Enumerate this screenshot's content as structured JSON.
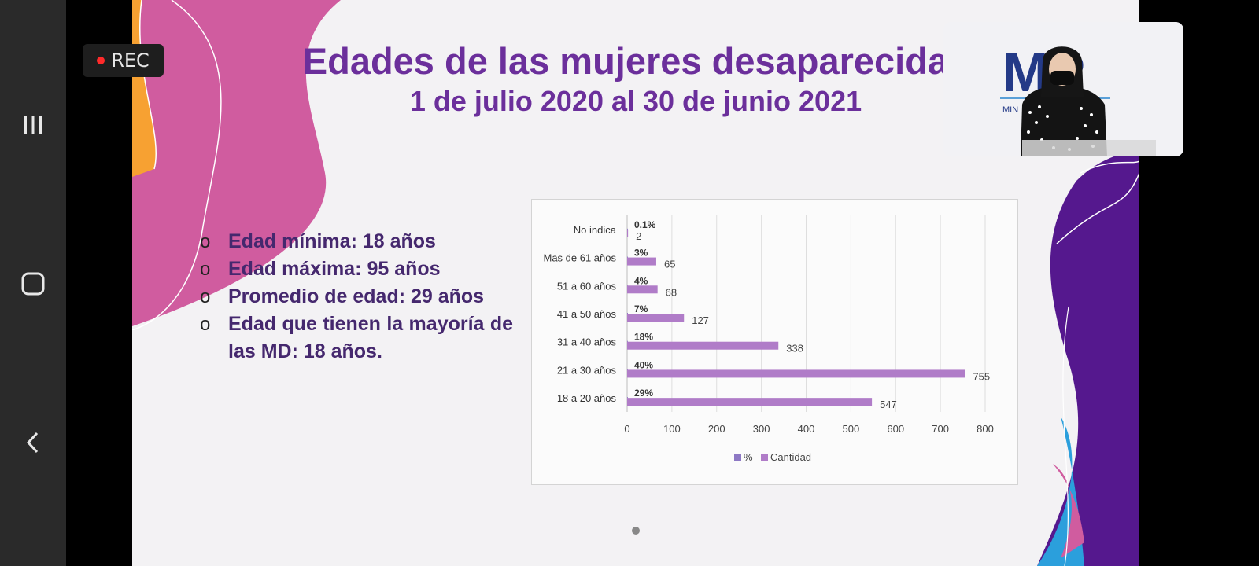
{
  "recorder": {
    "label": "REC"
  },
  "nav": {
    "recents_icon": "recents-icon",
    "home_icon": "home-icon",
    "back_icon": "back-icon"
  },
  "slide": {
    "title": "Edades de las mujeres desaparecidas",
    "subtitle": "1 de julio 2020 al 30 de junio 2021",
    "bullets": [
      "Edad mínima: 18 años",
      "Edad máxima: 95 años",
      "Promedio de edad: 29 años",
      "Edad que tienen la mayoría de las MD: 18 años."
    ],
    "bullet_marker": "o"
  },
  "camera": {
    "logo_text": "MP",
    "caption_fragment": "MIN"
  },
  "colors": {
    "purple_title": "#6b2f9b",
    "bullet_text": "#45286e",
    "bar": "#b07cc8",
    "pct_legend": "#8d78c4"
  },
  "chart_data": {
    "type": "bar",
    "orientation": "horizontal",
    "categories": [
      "No indica",
      "Mas de 61 años",
      "51 a 60 años",
      "41 a 50 años",
      "31 a 40 años",
      "21 a 30 años",
      "18 a 20 años"
    ],
    "series": [
      {
        "name": "%",
        "values": [
          "0.1%",
          "3%",
          "4%",
          "7%",
          "18%",
          "40%",
          "29%"
        ]
      },
      {
        "name": "Cantidad",
        "values": [
          2,
          65,
          68,
          127,
          338,
          755,
          547
        ]
      }
    ],
    "xlim": [
      0,
      800
    ],
    "xticks": [
      0,
      100,
      200,
      300,
      400,
      500,
      600,
      700,
      800
    ],
    "grid": true,
    "legend": "bottom"
  }
}
